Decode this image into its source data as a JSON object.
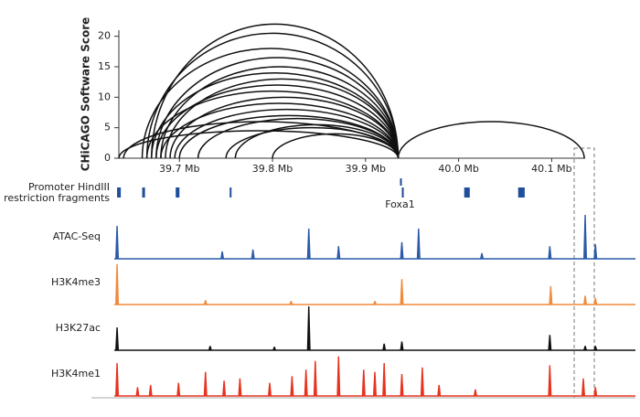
{
  "chart_data": [
    {
      "type": "arc",
      "ylabel": "CHiCAGO Software Score",
      "color": "#111111",
      "xlim": [
        39.63,
        40.19
      ],
      "ylim": [
        0,
        21
      ],
      "xticks": [
        {
          "value": 39.7,
          "label": "39.7 Mb"
        },
        {
          "value": 39.8,
          "label": "39.8 Mb"
        },
        {
          "value": 39.9,
          "label": "39.9 Mb"
        },
        {
          "value": 40.0,
          "label": "40.0 Mb"
        },
        {
          "value": 40.1,
          "label": "40.1 Mb"
        }
      ],
      "yticks": [
        0,
        5,
        10,
        15,
        20
      ],
      "starts": [
        39.67,
        39.665,
        39.66,
        39.675,
        39.68,
        39.67,
        39.685,
        39.675,
        39.665,
        39.69,
        39.68,
        39.695,
        39.7,
        39.72,
        39.64,
        39.76,
        39.75,
        39.8,
        39.635,
        39.935
      ],
      "ends": [
        39.935,
        39.935,
        39.935,
        39.935,
        39.935,
        39.935,
        39.935,
        39.935,
        39.935,
        39.935,
        39.935,
        39.935,
        39.935,
        39.935,
        39.935,
        39.935,
        39.935,
        39.935,
        39.935,
        40.135
      ],
      "values": [
        22,
        20.5,
        18,
        16.5,
        15,
        14,
        13,
        12,
        11,
        10,
        9,
        8,
        7,
        6.5,
        6,
        5.5,
        5,
        4,
        4.5,
        6
      ]
    },
    {
      "type": "fragments",
      "label_lines": [
        "Promoter HindIII",
        "restriction fragments"
      ],
      "annotation": "Foxa1",
      "color": "#1f4e9c",
      "starts": [
        39.633,
        39.66,
        39.696,
        39.754,
        39.937,
        39.939,
        40.006,
        40.064
      ],
      "ends": [
        39.637,
        39.663,
        39.7,
        39.756,
        39.939,
        39.941,
        40.012,
        40.071
      ]
    },
    {
      "type": "signal",
      "name": "ATAC-Seq",
      "color": "#2a5aa8",
      "ylim": [
        0,
        100
      ],
      "x": [
        39.633,
        39.746,
        39.779,
        39.839,
        39.871,
        39.939,
        39.957,
        40.025,
        40.098,
        40.136,
        40.147
      ],
      "values": [
        75,
        17,
        21,
        69,
        29,
        38,
        69,
        13,
        29,
        100,
        33
      ]
    },
    {
      "type": "signal",
      "name": "H3K4me3",
      "color": "#f08a3c",
      "ylim": [
        0,
        100
      ],
      "x": [
        39.633,
        39.728,
        39.82,
        39.91,
        39.939,
        40.099,
        40.136,
        40.147
      ],
      "values": [
        92,
        10,
        8,
        8,
        58,
        42,
        20,
        15
      ]
    },
    {
      "type": "signal",
      "name": "H3K27ac",
      "color": "#111111",
      "ylim": [
        0,
        100
      ],
      "x": [
        39.633,
        39.733,
        39.802,
        39.839,
        39.92,
        39.939,
        40.098,
        40.136,
        40.147
      ],
      "values": [
        52,
        10,
        8,
        100,
        15,
        20,
        35,
        10,
        10
      ]
    },
    {
      "type": "signal",
      "name": "H3K4me1",
      "color": "#e8321e",
      "ylim": [
        0,
        100
      ],
      "x": [
        39.633,
        39.655,
        39.669,
        39.699,
        39.728,
        39.748,
        39.765,
        39.797,
        39.821,
        39.836,
        39.846,
        39.871,
        39.898,
        39.91,
        39.92,
        39.939,
        39.961,
        39.979,
        40.018,
        40.098,
        40.134,
        40.147
      ],
      "values": [
        75,
        20,
        25,
        30,
        55,
        35,
        40,
        30,
        45,
        60,
        80,
        90,
        60,
        55,
        75,
        50,
        65,
        25,
        15,
        70,
        40,
        20
      ]
    }
  ]
}
